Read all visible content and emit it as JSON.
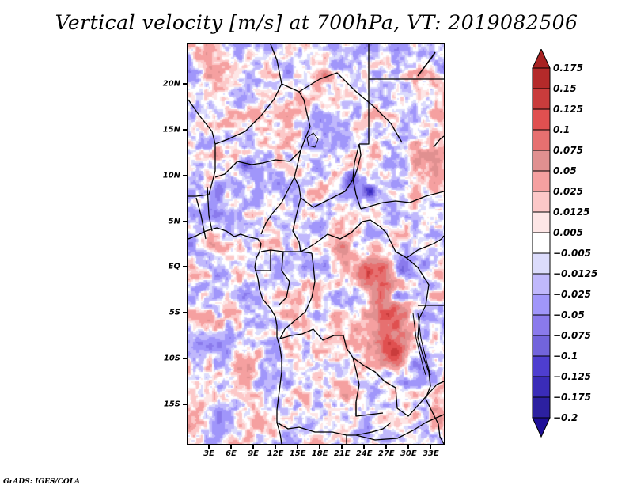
{
  "title": "Vertical velocity [m/s] at 700hPa, VT: 2019082506",
  "credit": "GrADS: IGES/COLA",
  "map": {
    "variable": "Vertical velocity",
    "units": "m/s",
    "level": "700hPa",
    "valid_time": "2019082506",
    "region": "Central Africa",
    "lon_range": [
      0,
      35
    ],
    "lat_range": [
      -19.5,
      24.5
    ],
    "y_ticks": [
      {
        "label": "20N",
        "lat": 20
      },
      {
        "label": "15N",
        "lat": 15
      },
      {
        "label": "10N",
        "lat": 10
      },
      {
        "label": "5N",
        "lat": 5
      },
      {
        "label": "EQ",
        "lat": 0
      },
      {
        "label": "5S",
        "lat": -5
      },
      {
        "label": "10S",
        "lat": -10
      },
      {
        "label": "15S",
        "lat": -15
      }
    ],
    "x_ticks": [
      {
        "label": "3E",
        "lon": 3
      },
      {
        "label": "6E",
        "lon": 6
      },
      {
        "label": "9E",
        "lon": 9
      },
      {
        "label": "12E",
        "lon": 12
      },
      {
        "label": "15E",
        "lon": 15
      },
      {
        "label": "18E",
        "lon": 18
      },
      {
        "label": "21E",
        "lon": 21
      },
      {
        "label": "24E",
        "lon": 24
      },
      {
        "label": "27E",
        "lon": 27
      },
      {
        "label": "30E",
        "lon": 30
      },
      {
        "label": "33E",
        "lon": 33
      }
    ]
  },
  "colorbar": {
    "labels": [
      "0.175",
      "0.15",
      "0.125",
      "0.1",
      "0.075",
      "0.05",
      "0.025",
      "0.0125",
      "0.005",
      "−0.005",
      "−0.0125",
      "−0.025",
      "−0.05",
      "−0.075",
      "−0.1",
      "−0.125",
      "−0.175",
      "−0.2"
    ],
    "levels": [
      0.175,
      0.15,
      0.125,
      0.1,
      0.075,
      0.05,
      0.025,
      0.0125,
      0.005,
      -0.005,
      -0.0125,
      -0.025,
      -0.05,
      -0.075,
      -0.1,
      -0.125,
      -0.175,
      -0.2
    ],
    "colors": [
      "#a82222",
      "#b42a2a",
      "#c93c3c",
      "#e05050",
      "#e67070",
      "#e09090",
      "#f5a0a0",
      "#fcc8c8",
      "#fde6e6",
      "#ffffff",
      "#dcdcfc",
      "#c0b8fc",
      "#a096fa",
      "#8a7aec",
      "#7264dc",
      "#4e3ed0",
      "#3a2cb8",
      "#2c20a0",
      "#1e0e98"
    ],
    "top_arrow_color": "#a82222",
    "bottom_arrow_color": "#1e0e98"
  }
}
